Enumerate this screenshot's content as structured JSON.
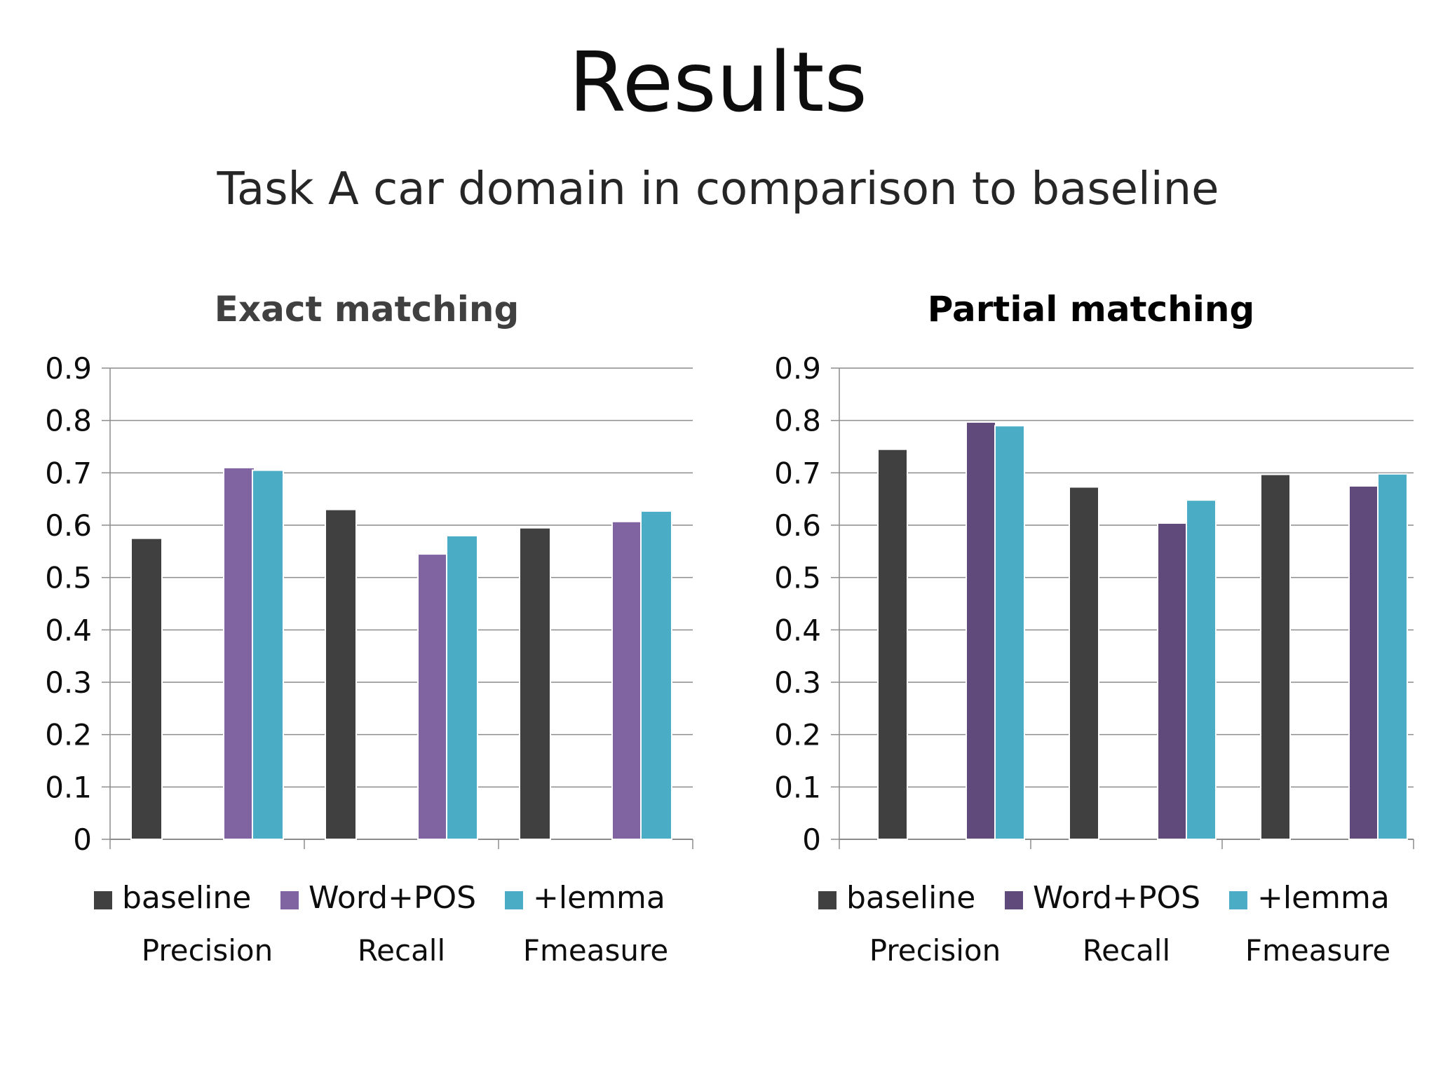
{
  "slide": {
    "title": "Results",
    "subtitle": "Task A car domain in comparison to baseline"
  },
  "chart_data": [
    {
      "type": "bar",
      "title": "Exact matching",
      "title_color": "#404040",
      "categories": [
        "Precision",
        "Recall",
        "Fmeasure"
      ],
      "series": [
        {
          "name": "baseline",
          "color": "#404040",
          "values": [
            0.575,
            0.63,
            0.595
          ]
        },
        {
          "name": "Word+POS",
          "color": "#8064a2",
          "values": [
            0.71,
            0.545,
            0.607
          ]
        },
        {
          "name": "+lemma",
          "color": "#4bacc6",
          "values": [
            0.705,
            0.58,
            0.627
          ]
        }
      ],
      "ylim": [
        0,
        0.9
      ],
      "yticks": [
        "0",
        "0.1",
        "0.2",
        "0.3",
        "0.4",
        "0.5",
        "0.6",
        "0.7",
        "0.8",
        "0.9"
      ],
      "grid": true,
      "legend": "bottom"
    },
    {
      "type": "bar",
      "title": "Partial matching",
      "title_color": "#000000",
      "categories": [
        "Precision",
        "Recall",
        "Fmeasure"
      ],
      "series": [
        {
          "name": "baseline",
          "color": "#404040",
          "values": [
            0.745,
            0.673,
            0.697
          ]
        },
        {
          "name": "Word+POS",
          "color": "#604a7b",
          "values": [
            0.797,
            0.604,
            0.675
          ]
        },
        {
          "name": "+lemma",
          "color": "#4bacc6",
          "values": [
            0.79,
            0.648,
            0.698
          ]
        }
      ],
      "ylim": [
        0,
        0.9
      ],
      "yticks": [
        "0",
        "0.1",
        "0.2",
        "0.3",
        "0.4",
        "0.5",
        "0.6",
        "0.7",
        "0.8",
        "0.9"
      ],
      "grid": true,
      "legend": "bottom"
    }
  ]
}
